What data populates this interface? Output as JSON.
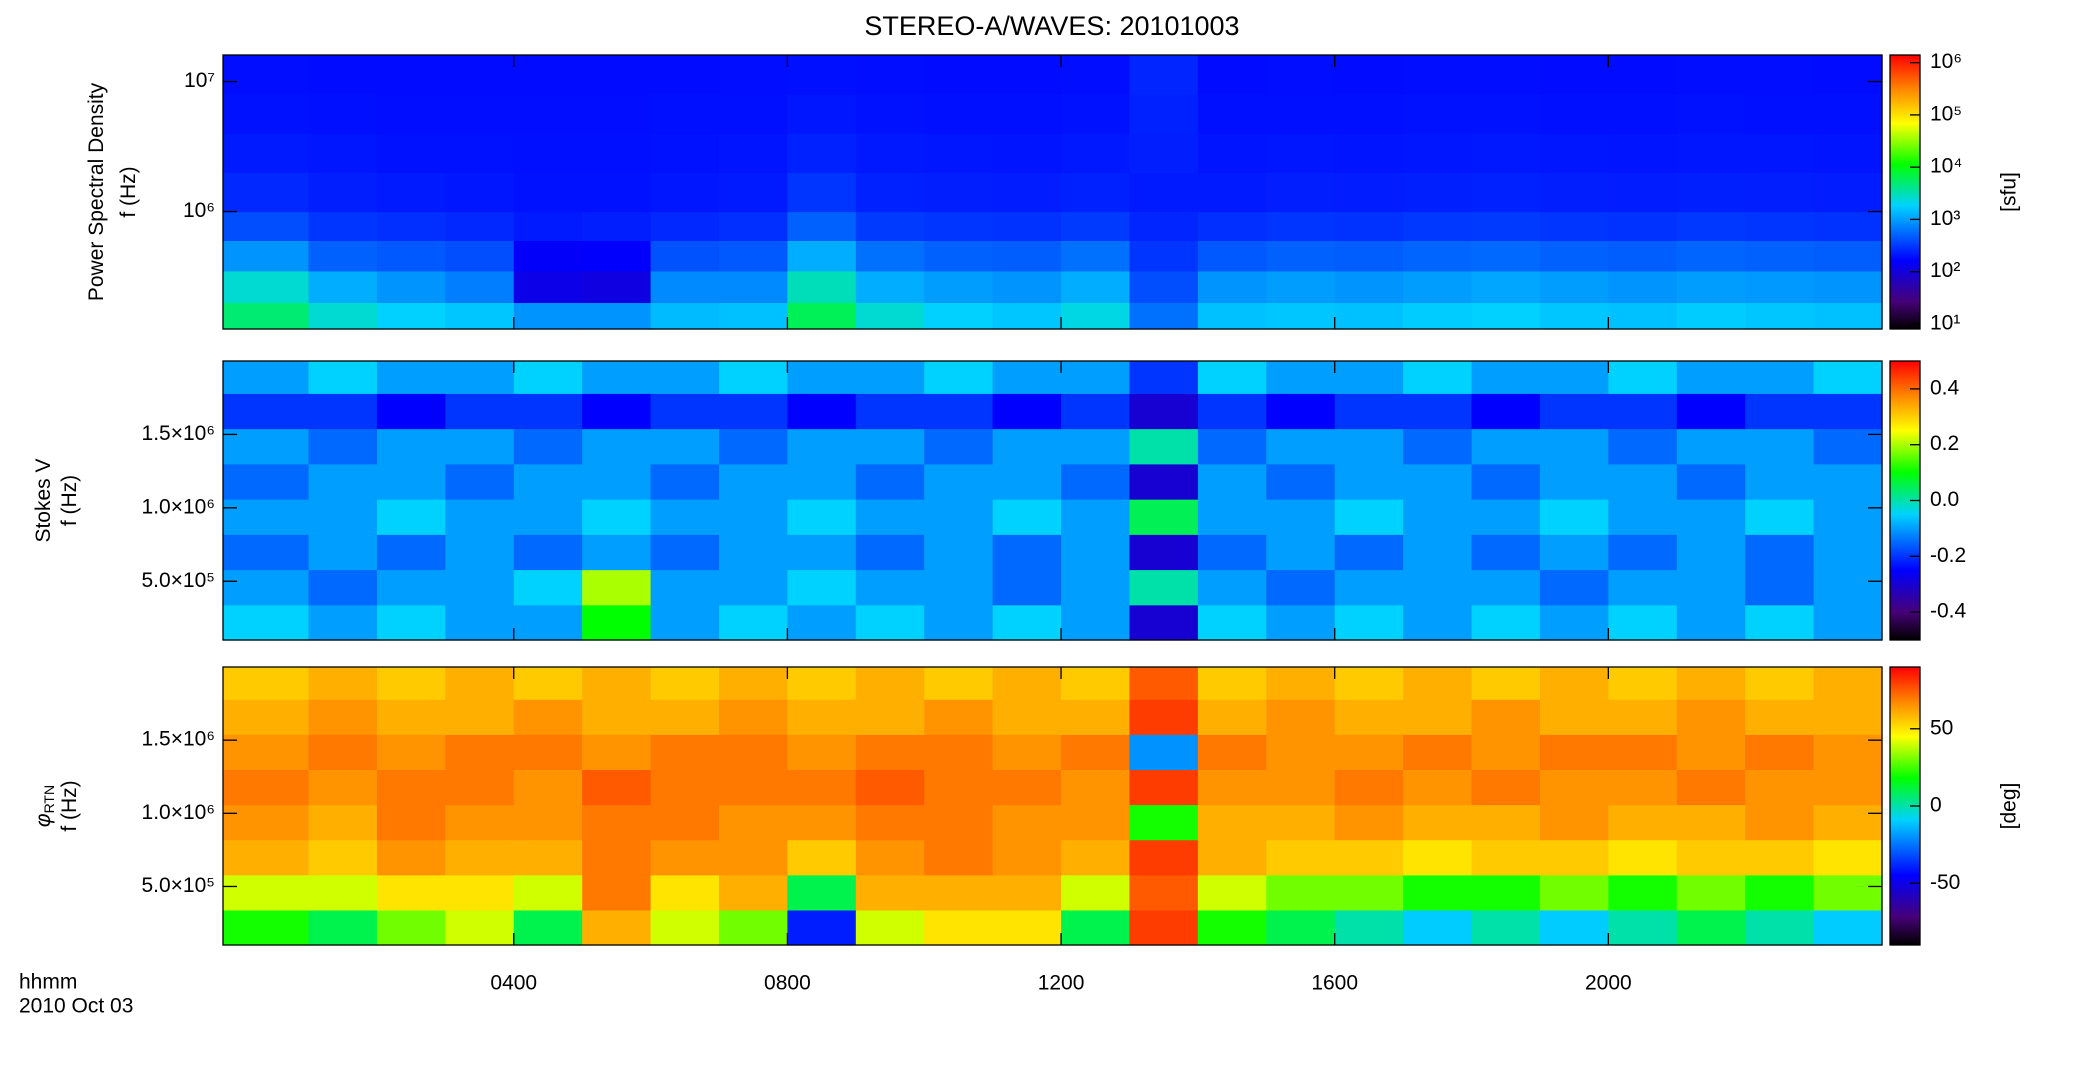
{
  "title": "STEREO-A/WAVES: 20101003",
  "x_label": [
    "hhmm",
    "2010 Oct 03"
  ],
  "chart_data": [
    {
      "type": "heatmap",
      "ylabel": [
        "Power Spectral Density",
        "f (Hz)"
      ],
      "log_y": true,
      "log_c": true,
      "xlim": [
        -0.25,
        24
      ],
      "xticks": [
        4,
        8,
        12,
        16,
        20
      ],
      "ylim": [
        125000,
        16000000
      ],
      "yticks": [
        {
          "value": 1000000,
          "label": "10⁶"
        },
        {
          "value": 10000000,
          "label": "10⁷"
        }
      ],
      "clim": [
        8,
        1400000
      ],
      "cticks": [
        {
          "value": 10,
          "label": "10¹"
        },
        {
          "value": 100,
          "label": "10²"
        },
        {
          "value": 1000,
          "label": "10³"
        },
        {
          "value": 10000,
          "label": "10⁴"
        },
        {
          "value": 100000,
          "label": "10⁵"
        },
        {
          "value": 1000000,
          "label": "10⁶"
        }
      ],
      "colorbar_label": "[sfu]",
      "x_edges": [
        -0.25,
        1,
        2,
        3,
        4,
        5,
        6,
        7,
        8,
        9,
        10,
        11,
        12,
        13,
        14,
        15,
        16,
        17,
        18,
        19,
        20,
        21,
        22,
        23,
        24
      ],
      "y_edges": [
        125000,
        200000,
        350000,
        600000,
        1000000,
        2000000,
        4000000,
        8000000,
        16000000
      ],
      "z": [
        [
          5000,
          2500,
          1800,
          1600,
          900,
          900,
          1400,
          1500,
          6000,
          2500,
          1800,
          1600,
          2200,
          600,
          1500,
          1600,
          1500,
          1700,
          1800,
          1600,
          1500,
          1700,
          1600,
          1500
        ],
        [
          2500,
          1200,
          900,
          700,
          120,
          110,
          800,
          800,
          3000,
          1200,
          1000,
          900,
          1200,
          400,
          900,
          1000,
          900,
          1000,
          1100,
          1000,
          900,
          1000,
          950,
          900
        ],
        [
          900,
          500,
          450,
          400,
          150,
          160,
          420,
          450,
          1200,
          600,
          500,
          480,
          600,
          300,
          450,
          500,
          480,
          520,
          550,
          500,
          480,
          520,
          500,
          480
        ],
        [
          400,
          300,
          280,
          260,
          220,
          230,
          260,
          280,
          500,
          320,
          300,
          290,
          320,
          250,
          280,
          300,
          290,
          310,
          320,
          300,
          290,
          310,
          300,
          290
        ],
        [
          260,
          230,
          220,
          210,
          200,
          200,
          210,
          220,
          300,
          240,
          230,
          225,
          240,
          220,
          220,
          230,
          225,
          235,
          240,
          230,
          225,
          235,
          230,
          225
        ],
        [
          220,
          210,
          200,
          200,
          195,
          195,
          200,
          205,
          240,
          215,
          210,
          205,
          215,
          230,
          205,
          210,
          205,
          210,
          215,
          210,
          205,
          210,
          210,
          205
        ],
        [
          200,
          195,
          190,
          190,
          190,
          190,
          195,
          195,
          210,
          200,
          195,
          195,
          200,
          240,
          195,
          195,
          195,
          200,
          200,
          195,
          195,
          200,
          195,
          195
        ],
        [
          190,
          185,
          185,
          185,
          185,
          185,
          185,
          190,
          195,
          190,
          185,
          185,
          190,
          250,
          185,
          190,
          185,
          190,
          190,
          185,
          185,
          190,
          190,
          185
        ]
      ]
    },
    {
      "type": "heatmap",
      "ylabel": [
        "Stokes V",
        "f (Hz)"
      ],
      "log_y": false,
      "log_c": false,
      "xlim": [
        -0.25,
        24
      ],
      "xticks": [
        4,
        8,
        12,
        16,
        20
      ],
      "ylim": [
        100000,
        2000000
      ],
      "yticks": [
        {
          "value": 500000,
          "label": "5.0×10⁵"
        },
        {
          "value": 1000000,
          "label": "1.0×10⁶"
        },
        {
          "value": 1500000,
          "label": "1.5×10⁶"
        }
      ],
      "clim": [
        -0.5,
        0.5
      ],
      "cticks": [
        -0.4,
        -0.2,
        {
          "value": 0,
          "label": "0.0"
        },
        0.2,
        0.4
      ],
      "x_edges": [
        -0.25,
        1,
        2,
        3,
        4,
        5,
        6,
        7,
        8,
        9,
        10,
        11,
        12,
        13,
        14,
        15,
        16,
        17,
        18,
        19,
        20,
        21,
        22,
        23,
        24
      ],
      "y_edges": [
        100000,
        340000,
        580000,
        820000,
        1060000,
        1300000,
        1540000,
        1780000,
        2000000
      ],
      "z": [
        [
          -0.05,
          -0.1,
          -0.05,
          -0.1,
          -0.1,
          0.1,
          -0.1,
          -0.05,
          -0.1,
          -0.05,
          -0.1,
          -0.05,
          -0.1,
          -0.3,
          -0.05,
          -0.1,
          -0.05,
          -0.1,
          -0.05,
          -0.1,
          -0.05,
          -0.1,
          -0.05,
          -0.1
        ],
        [
          -0.1,
          -0.15,
          -0.1,
          -0.1,
          -0.05,
          0.2,
          -0.1,
          -0.1,
          -0.05,
          -0.1,
          -0.1,
          -0.15,
          -0.1,
          0.0,
          -0.1,
          -0.15,
          -0.1,
          -0.1,
          -0.1,
          -0.15,
          -0.1,
          -0.1,
          -0.15,
          -0.1
        ],
        [
          -0.15,
          -0.1,
          -0.15,
          -0.1,
          -0.15,
          -0.1,
          -0.15,
          -0.1,
          -0.1,
          -0.15,
          -0.1,
          -0.15,
          -0.1,
          -0.3,
          -0.15,
          -0.1,
          -0.15,
          -0.1,
          -0.15,
          -0.1,
          -0.15,
          -0.1,
          -0.15,
          -0.1
        ],
        [
          -0.1,
          -0.1,
          -0.05,
          -0.1,
          -0.1,
          -0.05,
          -0.1,
          -0.1,
          -0.05,
          -0.1,
          -0.1,
          -0.05,
          -0.1,
          0.05,
          -0.1,
          -0.1,
          -0.05,
          -0.1,
          -0.1,
          -0.05,
          -0.1,
          -0.1,
          -0.05,
          -0.1
        ],
        [
          -0.15,
          -0.1,
          -0.1,
          -0.15,
          -0.1,
          -0.1,
          -0.15,
          -0.1,
          -0.1,
          -0.15,
          -0.1,
          -0.1,
          -0.15,
          -0.3,
          -0.1,
          -0.15,
          -0.1,
          -0.1,
          -0.15,
          -0.1,
          -0.1,
          -0.15,
          -0.1,
          -0.1
        ],
        [
          -0.1,
          -0.15,
          -0.1,
          -0.1,
          -0.15,
          -0.1,
          -0.1,
          -0.15,
          -0.1,
          -0.1,
          -0.15,
          -0.1,
          -0.1,
          0.0,
          -0.15,
          -0.1,
          -0.1,
          -0.15,
          -0.1,
          -0.1,
          -0.15,
          -0.1,
          -0.1,
          -0.15
        ],
        [
          -0.2,
          -0.2,
          -0.25,
          -0.2,
          -0.2,
          -0.25,
          -0.2,
          -0.2,
          -0.25,
          -0.2,
          -0.2,
          -0.25,
          -0.2,
          -0.3,
          -0.2,
          -0.25,
          -0.2,
          -0.2,
          -0.25,
          -0.2,
          -0.2,
          -0.25,
          -0.2,
          -0.2
        ],
        [
          -0.1,
          -0.05,
          -0.1,
          -0.1,
          -0.05,
          -0.1,
          -0.1,
          -0.05,
          -0.1,
          -0.1,
          -0.05,
          -0.1,
          -0.1,
          -0.2,
          -0.05,
          -0.1,
          -0.1,
          -0.05,
          -0.1,
          -0.1,
          -0.05,
          -0.1,
          -0.1,
          -0.05
        ]
      ]
    },
    {
      "type": "heatmap",
      "ylabel": [
        "φ",
        "f (Hz)"
      ],
      "ylabel_subscript": "RTN",
      "log_y": false,
      "log_c": false,
      "xlim": [
        -0.25,
        24
      ],
      "xticks": [
        {
          "value": 4,
          "label": "0400"
        },
        {
          "value": 8,
          "label": "0800"
        },
        {
          "value": 12,
          "label": "1200"
        },
        {
          "value": 16,
          "label": "1600"
        },
        {
          "value": 20,
          "label": "2000"
        }
      ],
      "ylim": [
        100000,
        2000000
      ],
      "yticks": [
        {
          "value": 500000,
          "label": "5.0×10⁵"
        },
        {
          "value": 1000000,
          "label": "1.0×10⁶"
        },
        {
          "value": 1500000,
          "label": "1.5×10⁶"
        }
      ],
      "clim": [
        -90,
        90
      ],
      "cticks": [
        -50,
        0,
        50
      ],
      "colorbar_label": "[deg]",
      "x_edges": [
        -0.25,
        1,
        2,
        3,
        4,
        5,
        6,
        7,
        8,
        9,
        10,
        11,
        12,
        13,
        14,
        15,
        16,
        17,
        18,
        19,
        20,
        21,
        22,
        23,
        24
      ],
      "y_edges": [
        100000,
        340000,
        580000,
        820000,
        1060000,
        1300000,
        1540000,
        1780000,
        2000000
      ],
      "z": [
        [
          20,
          10,
          30,
          40,
          10,
          60,
          40,
          30,
          -40,
          40,
          50,
          50,
          10,
          80,
          20,
          10,
          0,
          -10,
          0,
          -10,
          0,
          10,
          0,
          -10
        ],
        [
          40,
          40,
          50,
          50,
          40,
          70,
          50,
          60,
          10,
          60,
          60,
          60,
          40,
          75,
          40,
          30,
          30,
          20,
          20,
          30,
          20,
          30,
          20,
          30
        ],
        [
          60,
          55,
          65,
          60,
          60,
          70,
          65,
          65,
          55,
          65,
          70,
          65,
          60,
          80,
          60,
          55,
          55,
          50,
          55,
          55,
          50,
          55,
          55,
          50
        ],
        [
          65,
          60,
          70,
          65,
          65,
          70,
          70,
          65,
          65,
          70,
          70,
          65,
          65,
          20,
          60,
          60,
          65,
          60,
          60,
          65,
          60,
          60,
          65,
          60
        ],
        [
          70,
          65,
          70,
          70,
          65,
          75,
          70,
          70,
          70,
          75,
          70,
          70,
          65,
          80,
          65,
          65,
          70,
          65,
          70,
          65,
          65,
          70,
          65,
          65
        ],
        [
          65,
          70,
          65,
          70,
          70,
          65,
          70,
          70,
          65,
          70,
          70,
          65,
          70,
          -20,
          70,
          65,
          65,
          70,
          65,
          70,
          70,
          65,
          70,
          65
        ],
        [
          60,
          65,
          60,
          60,
          65,
          60,
          60,
          65,
          60,
          60,
          65,
          60,
          60,
          80,
          60,
          65,
          60,
          60,
          65,
          60,
          60,
          65,
          60,
          60
        ],
        [
          55,
          60,
          55,
          60,
          55,
          60,
          55,
          60,
          55,
          60,
          55,
          60,
          55,
          75,
          55,
          60,
          55,
          60,
          55,
          60,
          55,
          60,
          55,
          60
        ]
      ]
    }
  ]
}
